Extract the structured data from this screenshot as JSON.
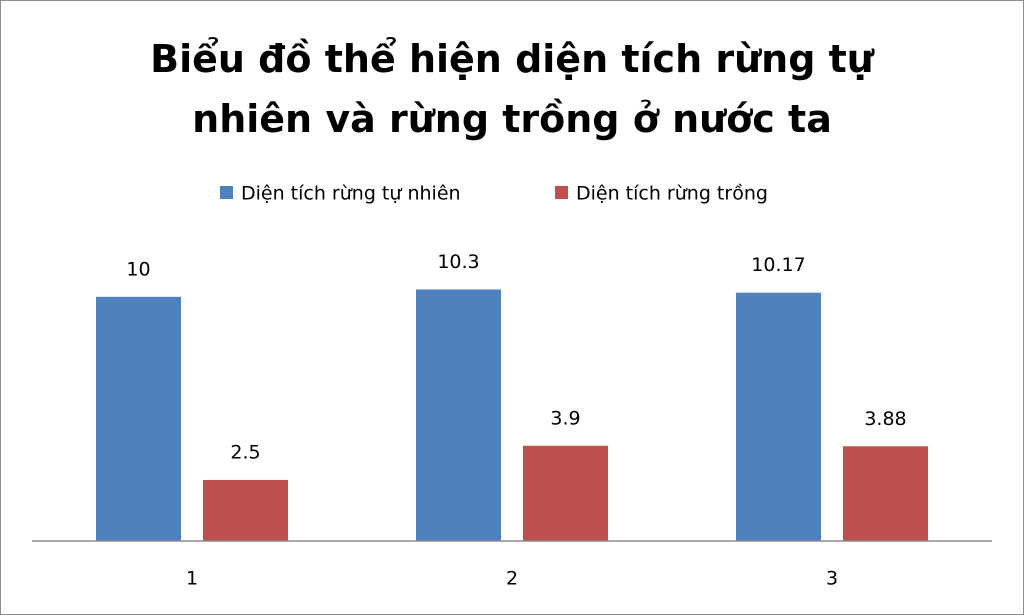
{
  "chart_data": {
    "type": "bar",
    "title": "Biểu đồ thể hiện diện tích rừng tự nhiên và rừng trồng ở nước ta",
    "categories": [
      "1",
      "2",
      "3"
    ],
    "series": [
      {
        "name": "Diện tích rừng tự nhiên",
        "color": "#4f81bd",
        "values": [
          10,
          10.3,
          10.17
        ]
      },
      {
        "name": "Diện tích rừng trồng",
        "color": "#c0504d",
        "values": [
          2.5,
          3.9,
          3.88
        ]
      }
    ],
    "ylim": [
      0,
      12
    ],
    "legend": "top",
    "data_labels": true
  }
}
